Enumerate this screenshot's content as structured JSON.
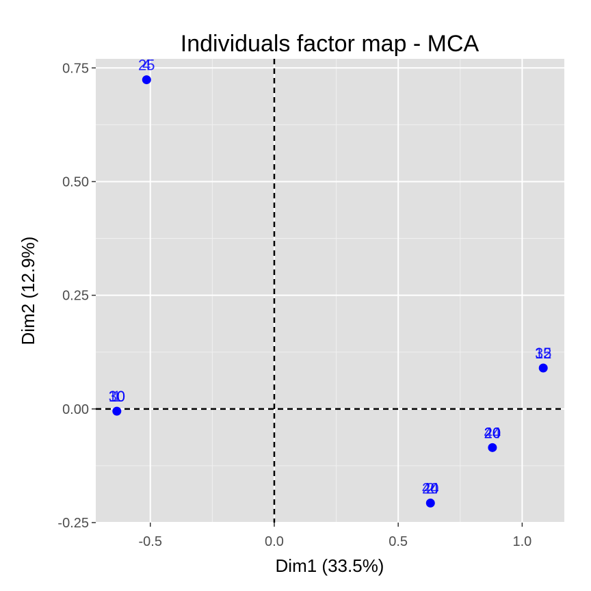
{
  "chart_data": {
    "type": "scatter",
    "title": "Individuals factor map - MCA",
    "xlabel": "Dim1 (33.5%)",
    "ylabel": "Dim2 (12.9%)",
    "xlim": [
      -0.72,
      1.17
    ],
    "ylim": [
      -0.25,
      0.77
    ],
    "x_ticks": [
      -0.5,
      0.0,
      0.5,
      1.0
    ],
    "x_tick_labels": [
      "-0.5",
      "0.0",
      "0.5",
      "1.0"
    ],
    "y_ticks": [
      -0.25,
      0.0,
      0.25,
      0.5,
      0.75
    ],
    "y_tick_labels": [
      "-0.25",
      "0.00",
      "0.25",
      "0.50",
      "0.75"
    ],
    "reference_lines": {
      "x": 0,
      "y": 0,
      "style": "dashed"
    },
    "grid": true,
    "colors": {
      "panel": "#e0e0e0",
      "grid_major": "#ffffff",
      "grid_minor": "#f0f0f0",
      "points": "#0000ff",
      "reference": "#000000"
    },
    "points": [
      {
        "x": -0.515,
        "y": 0.724,
        "labels": [
          "4",
          "25"
        ]
      },
      {
        "x": -0.635,
        "y": -0.005,
        "labels": [
          "1",
          "10",
          "30"
        ]
      },
      {
        "x": 0.63,
        "y": -0.207,
        "labels": [
          "2",
          "24",
          "40"
        ]
      },
      {
        "x": 0.88,
        "y": -0.085,
        "labels": [
          "20",
          "24",
          "40"
        ]
      },
      {
        "x": 1.085,
        "y": 0.09,
        "labels": [
          "12",
          "35"
        ]
      }
    ]
  }
}
